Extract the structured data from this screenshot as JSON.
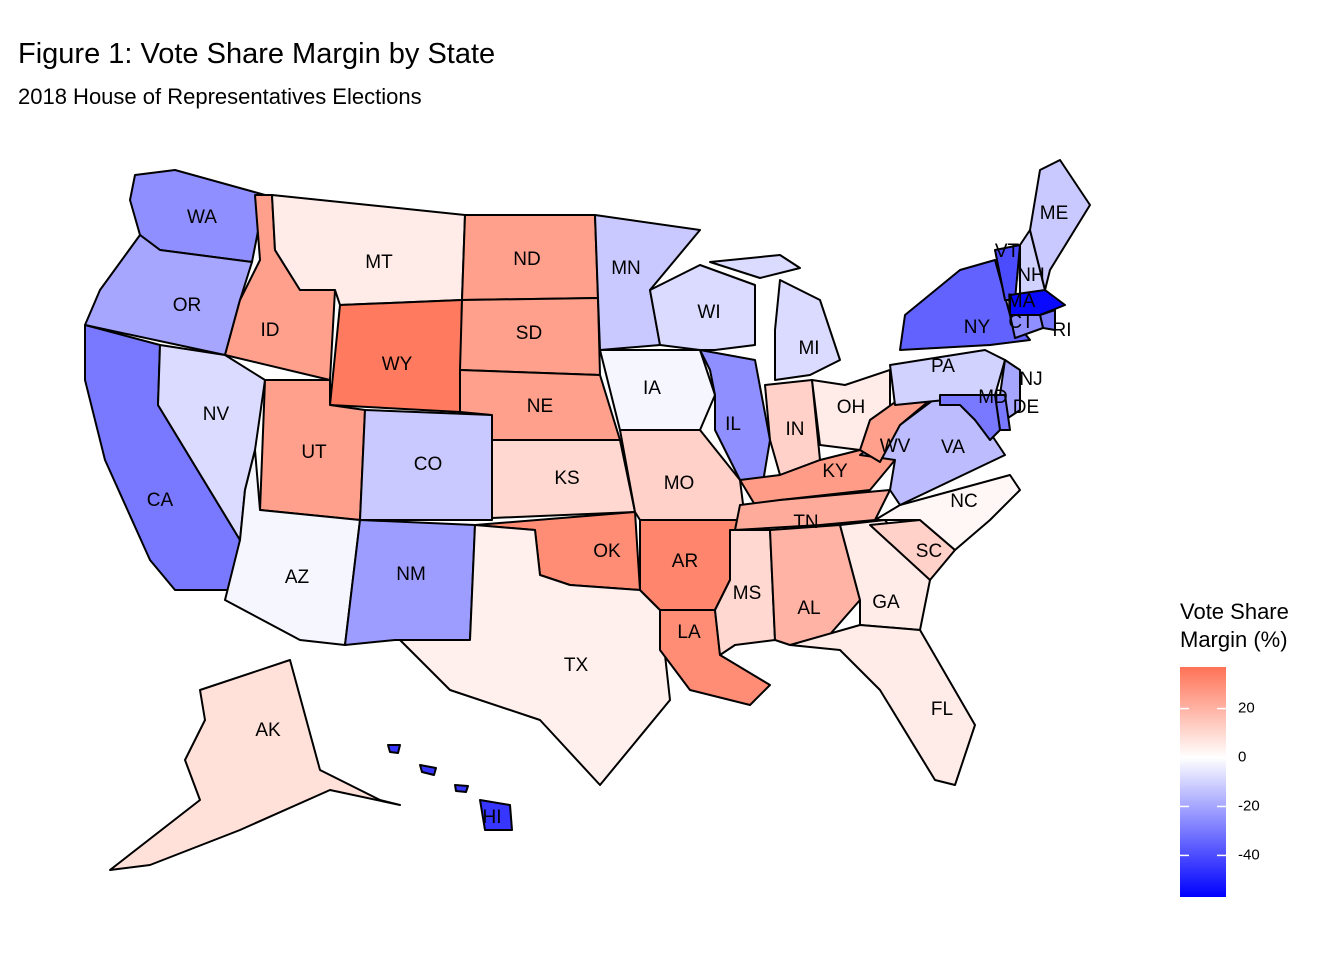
{
  "chart_data": {
    "type": "choropleth",
    "title": "Figure 1: Vote Share Margin by State",
    "subtitle": "2018 House of Representatives Elections",
    "legend_title": "Vote Share\nMargin (%)",
    "states": [
      "WA",
      "OR",
      "CA",
      "NV",
      "ID",
      "MT",
      "WY",
      "UT",
      "CO",
      "AZ",
      "NM",
      "ND",
      "SD",
      "NE",
      "KS",
      "OK",
      "TX",
      "MN",
      "IA",
      "MO",
      "AR",
      "LA",
      "WI",
      "MI",
      "IL",
      "IN",
      "OH",
      "KY",
      "TN",
      "MS",
      "AL",
      "GA",
      "FL",
      "SC",
      "NC",
      "VA",
      "WV",
      "PA",
      "NY",
      "VT",
      "NH",
      "ME",
      "MA",
      "RI",
      "CT",
      "NJ",
      "DE",
      "MD",
      "AK",
      "HI"
    ],
    "values": [
      -25,
      -20,
      -30,
      -8,
      25,
      5,
      35,
      25,
      -12,
      -2,
      -22,
      25,
      25,
      25,
      10,
      30,
      4,
      -12,
      -2,
      12,
      32,
      30,
      -8,
      -8,
      -25,
      12,
      5,
      26,
      22,
      10,
      20,
      5,
      5,
      12,
      2,
      -15,
      25,
      -10,
      -35,
      -40,
      -10,
      -12,
      -55,
      -30,
      -25,
      -20,
      -30,
      -30,
      8,
      -45
    ],
    "colorlim": [
      -57,
      37
    ],
    "colorticks": [
      20,
      0,
      -20,
      -40
    ],
    "colors": {
      "low": "#0000ff",
      "mid": "#ffffff",
      "high": "#ff7256"
    }
  }
}
